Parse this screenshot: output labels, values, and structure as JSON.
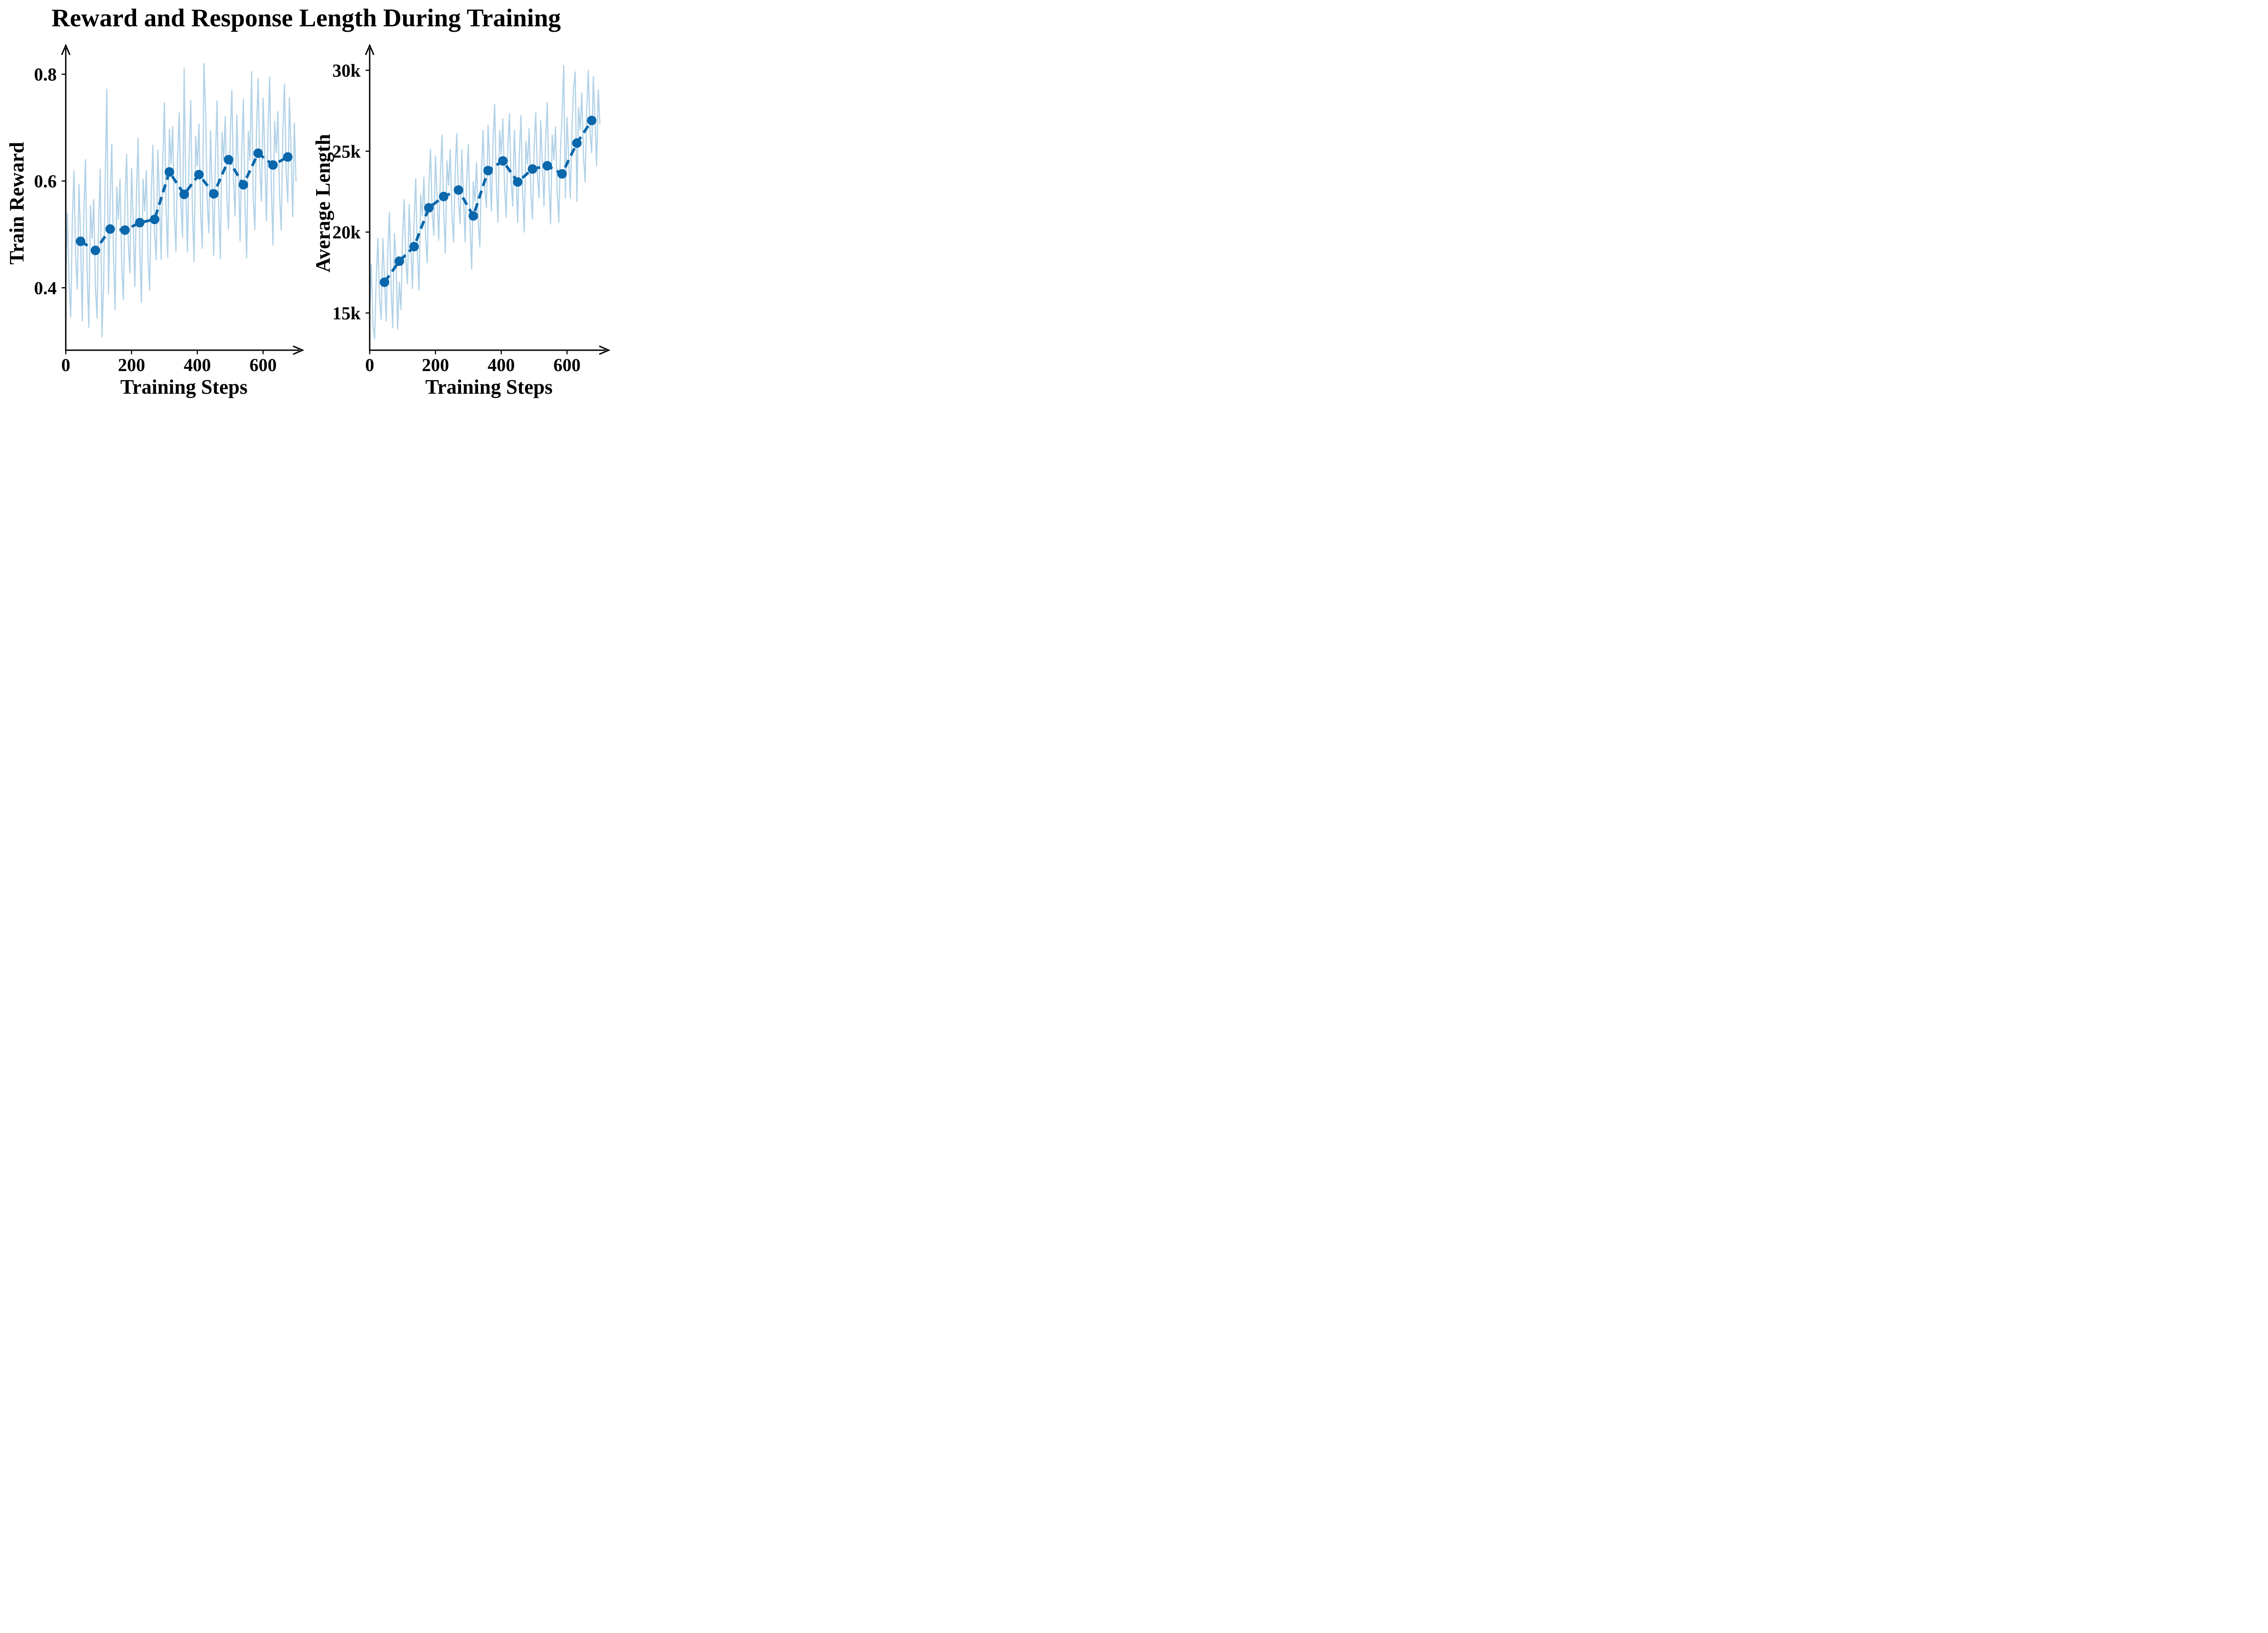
{
  "title": "Reward and Response Length During Training",
  "colors": {
    "raw_line": "#b2d2e7",
    "smoothed_line": "#0a67ab",
    "axis": "#000000",
    "background": "#ffffff"
  },
  "chart_data": [
    {
      "id": "train_reward",
      "type": "line",
      "xlabel": "Training Steps",
      "ylabel": "Train Reward",
      "xlim": [
        0,
        720
      ],
      "ylim": [
        0.283,
        0.855
      ],
      "grid": false,
      "legend": "none",
      "xticks": {
        "values": [
          0,
          200,
          400,
          600
        ],
        "labels": [
          "0",
          "200",
          "400",
          "600"
        ]
      },
      "yticks": {
        "values": [
          0.4,
          0.6,
          0.8
        ],
        "labels": [
          "0.4",
          "0.6",
          "0.8"
        ]
      },
      "series": [
        {
          "name": "raw-train-reward",
          "role": "raw",
          "x_start": 0,
          "x_step": 5,
          "values": [
            0.4,
            0.54,
            0.409,
            0.345,
            0.527,
            0.619,
            0.456,
            0.397,
            0.594,
            0.496,
            0.338,
            0.542,
            0.64,
            0.433,
            0.326,
            0.554,
            0.492,
            0.565,
            0.403,
            0.343,
            0.527,
            0.622,
            0.308,
            0.406,
            0.605,
            0.772,
            0.389,
            0.569,
            0.669,
            0.464,
            0.359,
            0.589,
            0.528,
            0.603,
            0.443,
            0.378,
            0.558,
            0.65,
            0.486,
            0.428,
            0.624,
            0.526,
            0.402,
            0.579,
            0.68,
            0.477,
            0.373,
            0.603,
            0.544,
            0.62,
            0.46,
            0.396,
            0.577,
            0.667,
            0.503,
            0.453,
            0.658,
            0.568,
            0.453,
            0.637,
            0.747,
            0.552,
            0.457,
            0.697,
            0.632,
            0.702,
            0.538,
            0.468,
            0.643,
            0.728,
            0.559,
            0.494,
            0.81,
            0.588,
            0.467,
            0.647,
            0.751,
            0.55,
            0.449,
            0.684,
            0.628,
            0.707,
            0.543,
            0.474,
            0.82,
            0.736,
            0.567,
            0.503,
            0.694,
            0.59,
            0.461,
            0.643,
            0.75,
            0.552,
            0.454,
            0.692,
            0.639,
            0.721,
            0.568,
            0.51,
            0.685,
            0.77,
            0.599,
            0.534,
            0.724,
            0.619,
            0.488,
            0.658,
            0.753,
            0.555,
            0.456,
            0.693,
            0.639,
            0.805,
            0.567,
            0.509,
            0.695,
            0.792,
            0.625,
            0.562,
            0.755,
            0.652,
            0.525,
            0.697,
            0.795,
            0.587,
            0.48,
            0.712,
            0.653,
            0.73,
            0.572,
            0.508,
            0.69,
            0.782,
            0.618,
            0.56,
            0.756,
            0.657,
            0.533,
            0.709,
            0.6
          ]
        },
        {
          "name": "smoothed-train-reward",
          "role": "smoothed",
          "x": [
            45,
            90,
            135,
            180,
            225,
            270,
            315,
            360,
            405,
            450,
            495,
            540,
            585,
            630,
            675
          ],
          "values": [
            0.487,
            0.47,
            0.51,
            0.508,
            0.522,
            0.528,
            0.617,
            0.575,
            0.612,
            0.576,
            0.64,
            0.593,
            0.652,
            0.63,
            0.645
          ]
        }
      ]
    },
    {
      "id": "average_length",
      "type": "line",
      "xlabel": "Training Steps",
      "ylabel": "Average Length",
      "xlim": [
        0,
        720
      ],
      "ylim": [
        12700,
        31570
      ],
      "grid": false,
      "legend": "none",
      "xticks": {
        "values": [
          0,
          200,
          400,
          600
        ],
        "labels": [
          "0",
          "200",
          "400",
          "600"
        ]
      },
      "yticks": {
        "values": [
          15000,
          20000,
          25000,
          30000
        ],
        "labels": [
          "15k",
          "20k",
          "25k",
          "30k"
        ]
      },
      "series": [
        {
          "name": "raw-average-length",
          "role": "raw",
          "x_start": 0,
          "x_step": 5,
          "values": [
            15000,
            18000,
            14200,
            13400,
            17200,
            19600,
            15800,
            14600,
            19600,
            17200,
            14500,
            18800,
            21200,
            16600,
            14100,
            19900,
            18500,
            14000,
            16900,
            15200,
            19700,
            22000,
            18100,
            16800,
            21700,
            19200,
            16500,
            20700,
            23300,
            18700,
            16400,
            22300,
            21000,
            23400,
            19700,
            18100,
            22800,
            25100,
            21200,
            19800,
            24700,
            22200,
            19500,
            23600,
            26000,
            21300,
            18700,
            24400,
            22900,
            25100,
            21100,
            19400,
            23800,
            26100,
            22100,
            20500,
            25100,
            22400,
            19400,
            23300,
            25400,
            20500,
            17700,
            23100,
            21900,
            24300,
            20600,
            19100,
            23800,
            26300,
            22600,
            21500,
            26600,
            24100,
            21300,
            25500,
            27900,
            23100,
            20600,
            26300,
            24800,
            27000,
            22900,
            20900,
            25200,
            27300,
            23100,
            21600,
            26300,
            23500,
            20600,
            24800,
            27200,
            22500,
            20000,
            25600,
            24200,
            26400,
            22500,
            20800,
            25200,
            27400,
            23500,
            22100,
            26900,
            24300,
            21600,
            25700,
            28000,
            23100,
            20500,
            26000,
            24500,
            26500,
            22500,
            20600,
            25000,
            27100,
            30300,
            22100,
            27100,
            24700,
            22100,
            26400,
            28900,
            29900,
            21900,
            27700,
            26300,
            28600,
            24700,
            23100,
            27600,
            30000,
            26100,
            24900,
            29600,
            26900,
            24100,
            28800,
            26700
          ]
        },
        {
          "name": "smoothed-average-length",
          "role": "smoothed",
          "x": [
            45,
            90,
            135,
            180,
            225,
            270,
            315,
            360,
            405,
            450,
            495,
            540,
            585,
            630,
            675
          ],
          "values": [
            16900,
            18200,
            19100,
            21500,
            22200,
            22600,
            21000,
            23800,
            24400,
            23100,
            23900,
            24100,
            23600,
            25500,
            26900
          ]
        }
      ]
    }
  ]
}
